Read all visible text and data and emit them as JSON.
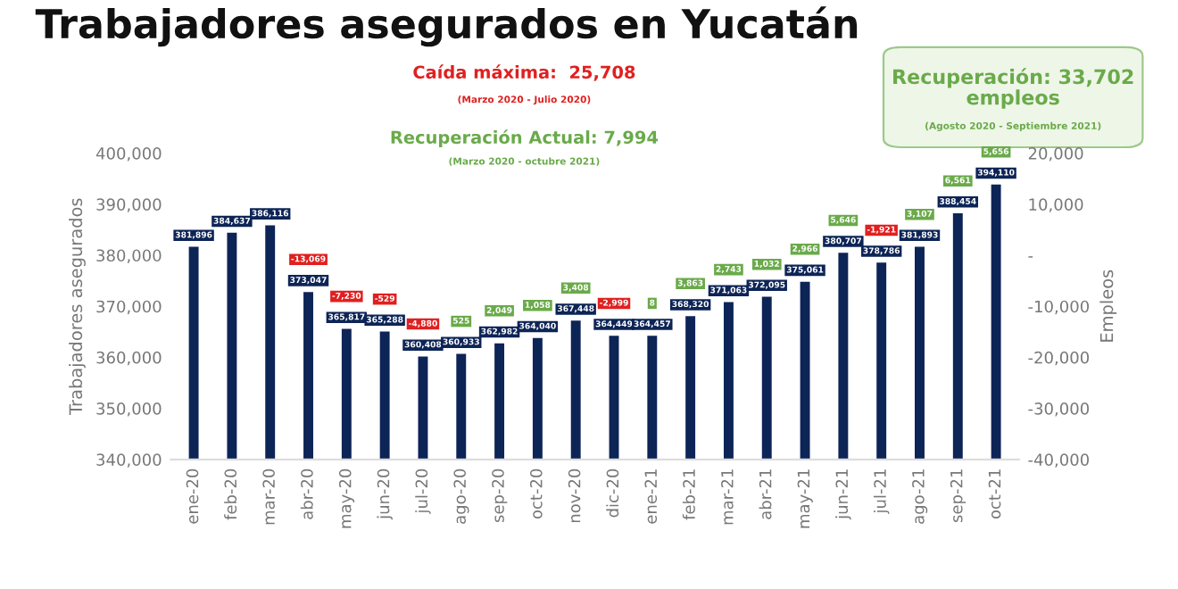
{
  "chart_data": {
    "type": "bar",
    "title": "Trabajadores asegurados en Yucatán",
    "categories": [
      "ene-20",
      "feb-20",
      "mar-20",
      "abr-20",
      "may-20",
      "jun-20",
      "jul-20",
      "ago-20",
      "sep-20",
      "oct-20",
      "nov-20",
      "dic-20",
      "ene-21",
      "feb-21",
      "mar-21",
      "abr-21",
      "may-21",
      "jun-21",
      "jul-21",
      "ago-21",
      "sep-21",
      "oct-21"
    ],
    "series": [
      {
        "color": "#0d2456",
        "values": [
          381896,
          384637,
          386116,
          373047,
          365817,
          365288,
          360408,
          360933,
          362982,
          364040,
          367448,
          364449,
          364457,
          368320,
          371063,
          372095,
          375061,
          380707,
          378786,
          381893,
          388454,
          394110
        ],
        "value_labels": [
          "381,896",
          "384,637",
          "386,116",
          "373,047",
          "365,817",
          "365,288",
          "360,408",
          "360,933",
          "362,982",
          "364,040",
          "367,448",
          "364,449",
          "364,457",
          "368,320",
          "371,063",
          "372,095",
          "375,061",
          "380,707",
          "378,786",
          "381,893",
          "388,454",
          "394,110"
        ]
      }
    ],
    "ylabel": "Trabajadores asegurados",
    "y2label": "Empleos",
    "ylim": [
      340000,
      400000
    ],
    "yticks": [
      {
        "value": 340000,
        "label": "340,000"
      },
      {
        "value": 350000,
        "label": "350,000"
      },
      {
        "value": 360000,
        "label": "360,000"
      },
      {
        "value": 370000,
        "label": "370,000"
      },
      {
        "value": 380000,
        "label": "380,000"
      },
      {
        "value": 390000,
        "label": "390,000"
      },
      {
        "value": 400000,
        "label": "400,000"
      }
    ],
    "y2lim": [
      -40000,
      20000
    ],
    "y2ticks": [
      {
        "value": -40000,
        "label": "-40,000"
      },
      {
        "value": -30000,
        "label": "-30,000"
      },
      {
        "value": -20000,
        "label": "-20,000"
      },
      {
        "value": -10000,
        "label": "-10,000"
      },
      {
        "value": 0,
        "label": "-"
      },
      {
        "value": 10000,
        "label": "10,000"
      },
      {
        "value": 20000,
        "label": "20,000"
      }
    ],
    "grid": false,
    "legend": false,
    "annotations": [
      "Caída máxima:  25,708",
      "(Marzo 2020 - Julio 2020)",
      "Recuperación Actual: 7,994",
      "(Marzo 2020 - octubre 2021)",
      "Recuperación: 33,702\nempleos",
      "(Agosto 2020 - Septiembre 2021)",
      "-13,069",
      "-7,230",
      "-529",
      "-4,880",
      "525",
      "2,049",
      "1,058",
      "3,408",
      "-2,999",
      "8",
      "3,863",
      "2,743",
      "1,032",
      "2,966",
      "5,646",
      "-1,921",
      "3,107",
      "6,561",
      "5,656"
    ]
  }
}
